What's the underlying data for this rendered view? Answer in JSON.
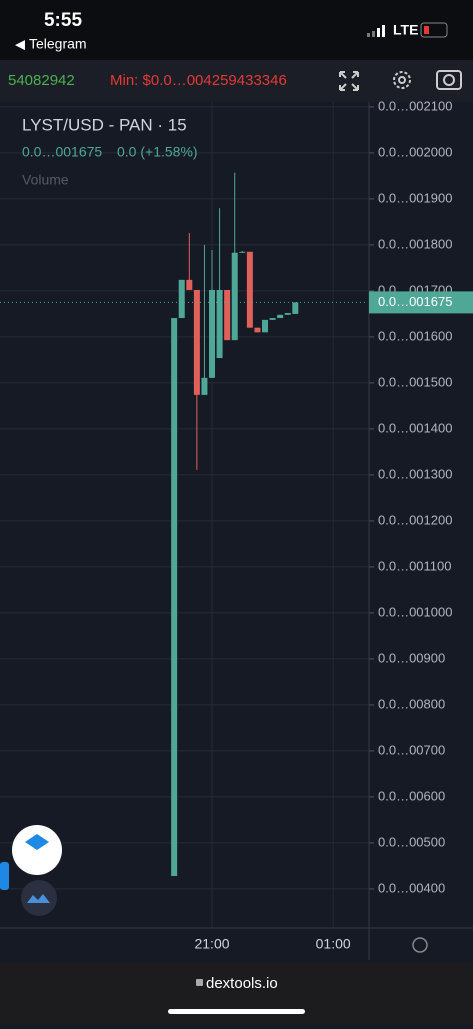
{
  "status_bar": {
    "time": "5:55",
    "back_app": "Telegram",
    "network": "LTE"
  },
  "toolbar": {
    "price_partial": "54082942",
    "min_price": "Min: $0.0…004259433346"
  },
  "chart_data": {
    "type": "candlestick",
    "title": "LYST/USD - PAN · 15",
    "change_label": "0.0 (+1.58%)",
    "volume_label": "Volume",
    "last_price": {
      "value": 0.001675,
      "label": "0.0…001675"
    },
    "up_color": "#4fa897",
    "down_color": "#e0605a",
    "x": [
      19.75,
      20,
      20.25,
      20.5,
      20.75,
      21,
      21.25,
      21.5,
      21.75,
      22,
      22.25,
      22.5,
      22.75,
      23,
      23.25,
      23.5,
      23.75
    ],
    "open": [
      0.000428,
      0.001641,
      0.001724,
      0.001702,
      0.001474,
      0.001511,
      0.001554,
      0.001702,
      0.001593,
      0.001783,
      0.001785,
      0.00162,
      0.00161,
      0.001637,
      0.001641,
      0.001648,
      0.00165
    ],
    "high": [
      0.001641,
      0.001724,
      0.001826,
      0.001702,
      0.0018,
      0.001789,
      0.00188,
      0.001702,
      0.001957,
      0.001787,
      0.001785,
      0.00162,
      0.001637,
      0.001641,
      0.001648,
      0.001652,
      0.001675
    ],
    "low": [
      0.000428,
      0.001641,
      0.001702,
      0.001311,
      0.001474,
      0.001511,
      0.001554,
      0.001593,
      0.001593,
      0.001783,
      0.00162,
      0.00161,
      0.00161,
      0.001637,
      0.001641,
      0.001648,
      0.00165
    ],
    "close": [
      0.001641,
      0.001724,
      0.001702,
      0.001474,
      0.001511,
      0.001702,
      0.001702,
      0.001593,
      0.001783,
      0.001785,
      0.00162,
      0.00161,
      0.001637,
      0.001641,
      0.001648,
      0.001652,
      0.001675
    ],
    "xlim": [
      14,
      26.15
    ],
    "ylim": [
      0.000315,
      0.002115
    ],
    "xticks": [
      {
        "value": 21,
        "label": "21:00"
      },
      {
        "value": 25,
        "label": "01:00"
      }
    ],
    "yticks": [
      {
        "value": 0.0021,
        "label": "0.0…002100"
      },
      {
        "value": 0.002,
        "label": "0.0…002000"
      },
      {
        "value": 0.0019,
        "label": "0.0…001900"
      },
      {
        "value": 0.0018,
        "label": "0.0…001800"
      },
      {
        "value": 0.0017,
        "label": "0.0…001700"
      },
      {
        "value": 0.0016,
        "label": "0.0…001600"
      },
      {
        "value": 0.0015,
        "label": "0.0…001500"
      },
      {
        "value": 0.0014,
        "label": "0.0…001400"
      },
      {
        "value": 0.0013,
        "label": "0.0…001300"
      },
      {
        "value": 0.0012,
        "label": "0.0…001200"
      },
      {
        "value": 0.0011,
        "label": "0.0…001100"
      },
      {
        "value": 0.001,
        "label": "0.0…001000"
      },
      {
        "value": 0.0009,
        "label": "0.0…00900"
      },
      {
        "value": 0.0008,
        "label": "0.0…00800"
      },
      {
        "value": 0.0007,
        "label": "0.0…00700"
      },
      {
        "value": 0.0006,
        "label": "0.0…00600"
      },
      {
        "value": 0.0005,
        "label": "0.0…00500"
      },
      {
        "value": 0.0004,
        "label": "0.0…00400"
      }
    ]
  },
  "browser": {
    "url": "dextools.io"
  }
}
